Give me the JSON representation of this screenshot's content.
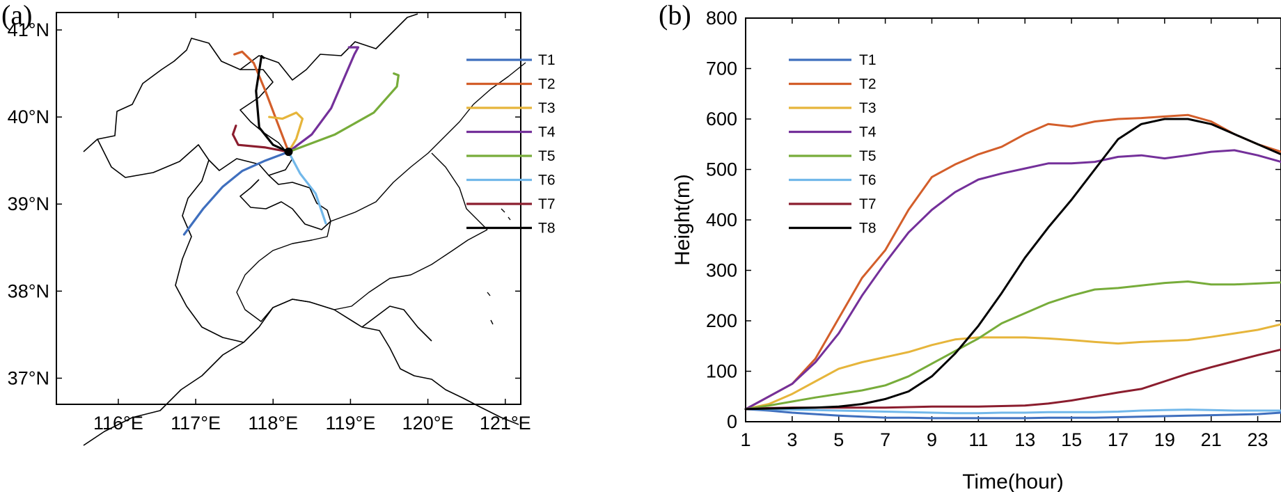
{
  "chart_data": [
    {
      "panel": "(a)",
      "type": "map",
      "lon_range": [
        115.2,
        121.2
      ],
      "lat_range": [
        36.7,
        41.2
      ],
      "x_ticks": [
        "116°E",
        "117°E",
        "118°E",
        "119°E",
        "120°E",
        "121°E"
      ],
      "x_tick_values": [
        116,
        117,
        118,
        119,
        120,
        121
      ],
      "y_ticks": [
        "37°N",
        "38°N",
        "39°N",
        "40°N",
        "41°N"
      ],
      "y_tick_values": [
        37,
        38,
        39,
        40,
        41
      ],
      "origin": [
        118.2,
        39.6
      ],
      "colors": {
        "T1": "#3f6fbe",
        "T2": "#d35e2a",
        "T3": "#e6b53b",
        "T4": "#74309a",
        "T5": "#77ac3a",
        "T6": "#72b8ea",
        "T7": "#8b1d2e",
        "T8": "#000000"
      },
      "legend": [
        "T1",
        "T2",
        "T3",
        "T4",
        "T5",
        "T6",
        "T7",
        "T8"
      ],
      "legend_position": "top-right",
      "trajectories": [
        {
          "name": "T1",
          "points": [
            [
              118.2,
              39.6
            ],
            [
              117.9,
              39.5
            ],
            [
              117.6,
              39.38
            ],
            [
              117.35,
              39.2
            ],
            [
              117.1,
              38.95
            ],
            [
              116.85,
              38.65
            ]
          ]
        },
        {
          "name": "T2",
          "points": [
            [
              118.2,
              39.6
            ],
            [
              118.05,
              39.95
            ],
            [
              117.9,
              40.3
            ],
            [
              117.75,
              40.62
            ],
            [
              117.6,
              40.75
            ],
            [
              117.5,
              40.72
            ]
          ]
        },
        {
          "name": "T3",
          "points": [
            [
              118.2,
              39.6
            ],
            [
              118.3,
              39.75
            ],
            [
              118.38,
              39.98
            ],
            [
              118.3,
              40.05
            ],
            [
              118.12,
              39.98
            ],
            [
              117.95,
              40.0
            ]
          ]
        },
        {
          "name": "T4",
          "points": [
            [
              118.2,
              39.6
            ],
            [
              118.5,
              39.8
            ],
            [
              118.75,
              40.1
            ],
            [
              118.92,
              40.45
            ],
            [
              119.05,
              40.72
            ],
            [
              119.1,
              40.8
            ],
            [
              118.98,
              40.8
            ]
          ]
        },
        {
          "name": "T5",
          "points": [
            [
              118.2,
              39.6
            ],
            [
              118.8,
              39.8
            ],
            [
              119.3,
              40.05
            ],
            [
              119.6,
              40.35
            ],
            [
              119.62,
              40.48
            ],
            [
              119.56,
              40.5
            ]
          ]
        },
        {
          "name": "T6",
          "points": [
            [
              118.2,
              39.6
            ],
            [
              118.35,
              39.35
            ],
            [
              118.55,
              39.12
            ],
            [
              118.68,
              38.78
            ]
          ]
        },
        {
          "name": "T7",
          "points": [
            [
              118.2,
              39.6
            ],
            [
              117.9,
              39.65
            ],
            [
              117.55,
              39.68
            ],
            [
              117.48,
              39.8
            ],
            [
              117.52,
              39.9
            ]
          ]
        },
        {
          "name": "T8",
          "points": [
            [
              118.2,
              39.6
            ],
            [
              118.0,
              39.68
            ],
            [
              117.82,
              39.88
            ],
            [
              117.78,
              40.3
            ],
            [
              117.85,
              40.7
            ],
            [
              117.88,
              40.68
            ]
          ]
        }
      ]
    },
    {
      "panel": "(b)",
      "type": "line",
      "xlabel": "Time(hour)",
      "ylabel": "Height(m)",
      "x": [
        1,
        2,
        3,
        4,
        5,
        6,
        7,
        8,
        9,
        10,
        11,
        12,
        13,
        14,
        15,
        16,
        17,
        18,
        19,
        20,
        21,
        22,
        23,
        24
      ],
      "x_ticks": [
        1,
        3,
        5,
        7,
        9,
        11,
        13,
        15,
        17,
        19,
        21,
        23
      ],
      "xlim": [
        1,
        24
      ],
      "ylim": [
        0,
        800
      ],
      "y_ticks": [
        0,
        100,
        200,
        300,
        400,
        500,
        600,
        700,
        800
      ],
      "legend_position": "top-left",
      "grid": false,
      "series": [
        {
          "name": "T1",
          "color": "#3f6fbe",
          "values": [
            25,
            22,
            18,
            15,
            12,
            10,
            8,
            8,
            7,
            7,
            7,
            7,
            7,
            8,
            8,
            8,
            9,
            10,
            11,
            12,
            13,
            14,
            15,
            18
          ]
        },
        {
          "name": "T2",
          "color": "#d35e2a",
          "values": [
            25,
            50,
            75,
            125,
            205,
            285,
            340,
            420,
            485,
            510,
            530,
            545,
            570,
            590,
            585,
            595,
            600,
            602,
            605,
            608,
            595,
            570,
            550,
            535
          ]
        },
        {
          "name": "T3",
          "color": "#e6b53b",
          "values": [
            25,
            35,
            55,
            80,
            105,
            118,
            128,
            138,
            152,
            163,
            167,
            167,
            167,
            165,
            162,
            158,
            155,
            158,
            160,
            162,
            168,
            175,
            182,
            193
          ]
        },
        {
          "name": "T4",
          "color": "#74309a",
          "values": [
            25,
            50,
            75,
            118,
            175,
            250,
            315,
            375,
            420,
            455,
            480,
            492,
            502,
            512,
            512,
            515,
            525,
            528,
            522,
            528,
            535,
            538,
            528,
            515
          ]
        },
        {
          "name": "T5",
          "color": "#77ac3a",
          "values": [
            25,
            32,
            40,
            48,
            55,
            62,
            72,
            90,
            115,
            140,
            165,
            195,
            215,
            235,
            250,
            262,
            265,
            270,
            275,
            278,
            272,
            272,
            274,
            276
          ]
        },
        {
          "name": "T6",
          "color": "#72b8ea",
          "values": [
            25,
            25,
            24,
            23,
            22,
            21,
            20,
            19,
            18,
            17,
            17,
            18,
            18,
            19,
            19,
            19,
            20,
            22,
            23,
            24,
            23,
            22,
            22,
            22
          ]
        },
        {
          "name": "T7",
          "color": "#8b1d2e",
          "values": [
            25,
            27,
            28,
            28,
            28,
            28,
            28,
            29,
            30,
            30,
            30,
            31,
            32,
            36,
            42,
            50,
            58,
            65,
            80,
            95,
            108,
            120,
            132,
            143
          ]
        },
        {
          "name": "T8",
          "color": "#000000",
          "values": [
            25,
            26,
            27,
            28,
            30,
            35,
            45,
            60,
            90,
            135,
            190,
            255,
            325,
            385,
            440,
            500,
            560,
            590,
            600,
            600,
            590,
            570,
            550,
            530
          ]
        }
      ]
    }
  ]
}
